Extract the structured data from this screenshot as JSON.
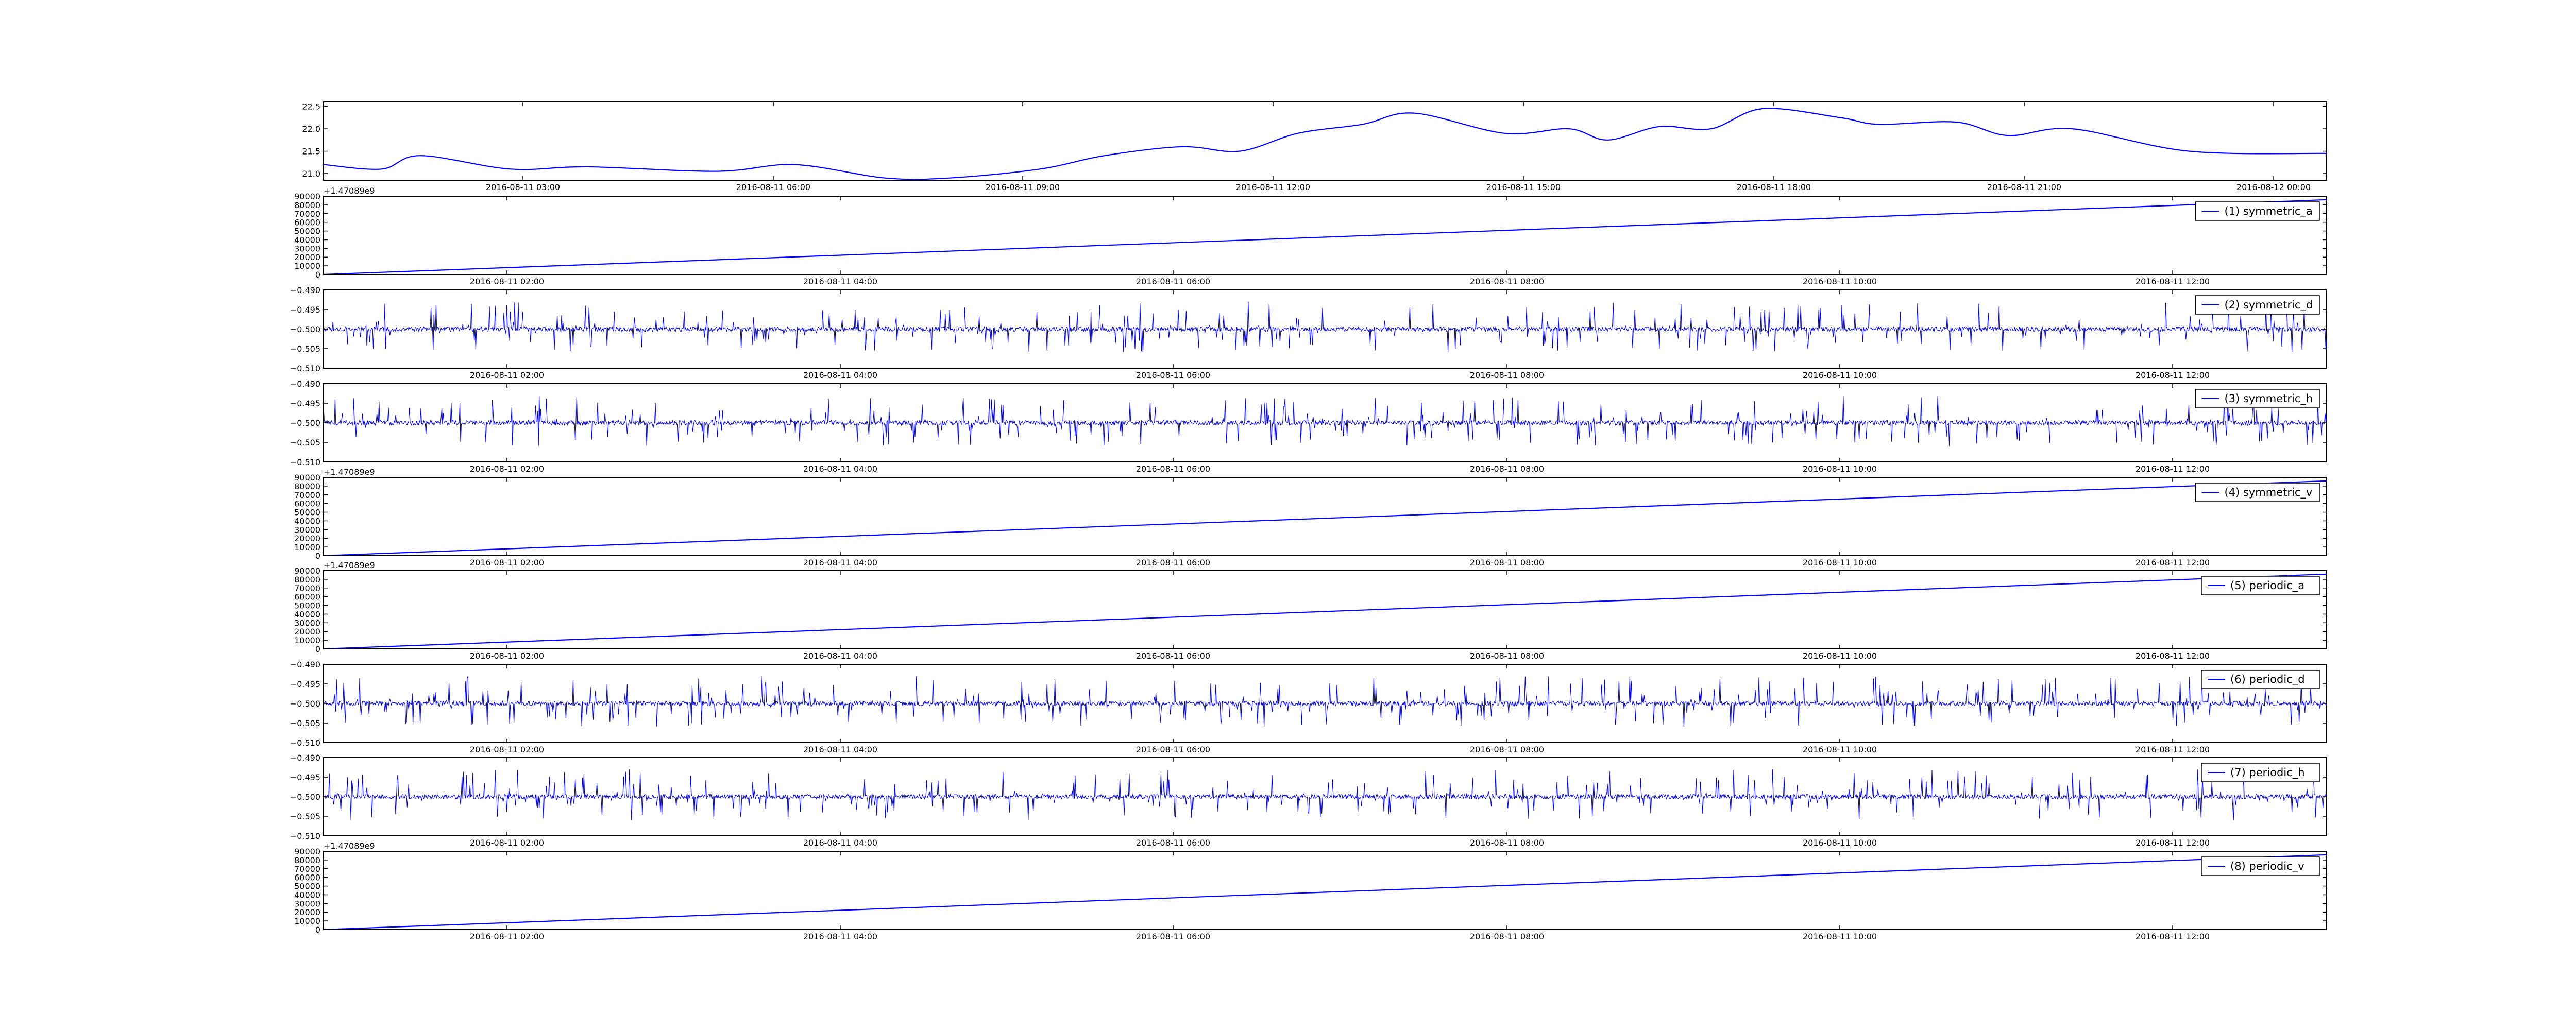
{
  "colors": {
    "line": "#0000ff",
    "axes": "#000000",
    "background": "#ffffff"
  },
  "chart_data": [
    {
      "type": "line",
      "panel": 0,
      "x_type": "datetime",
      "x_range": [
        "2016-08-11 00:55",
        "2016-08-12 02:47"
      ],
      "xtick_labels": [
        "2016-08-11 03:00",
        "2016-08-11 06:00",
        "2016-08-11 09:00",
        "2016-08-11 12:00",
        "2016-08-11 15:00",
        "2016-08-11 18:00",
        "2016-08-11 21:00",
        "2016-08-12 00:00"
      ],
      "ylim": [
        20.85,
        22.6
      ],
      "ytick_labels": [
        "21.0",
        "21.5",
        "22.0",
        "22.5"
      ],
      "y_offset_label": "",
      "legend": "",
      "series": [
        {
          "x": [
            "2016-08-11 00:55",
            "2016-08-11 01:40",
            "2016-08-11 02:10",
            "2016-08-11 03:20",
            "2016-08-11 04:20",
            "2016-08-11 06:00",
            "2016-08-11 07:00",
            "2016-08-11 08:10",
            "2016-08-11 09:00",
            "2016-08-11 10:10",
            "2016-08-11 11:00",
            "2016-08-11 12:00",
            "2016-08-11 12:45",
            "2016-08-11 13:30",
            "2016-08-11 14:20",
            "2016-08-11 15:00",
            "2016-08-11 16:10",
            "2016-08-11 17:00",
            "2016-08-11 17:30",
            "2016-08-11 18:10",
            "2016-08-11 18:50",
            "2016-08-11 19:30",
            "2016-08-11 20:30",
            "2016-08-11 21:00",
            "2016-08-11 22:00",
            "2016-08-11 22:40",
            "2016-08-11 23:30",
            "2016-08-12 01:00",
            "2016-08-12 02:47"
          ],
          "y": [
            21.2,
            21.1,
            21.4,
            21.1,
            21.15,
            21.05,
            21.2,
            20.9,
            20.9,
            21.1,
            21.4,
            21.6,
            21.5,
            21.9,
            22.1,
            22.35,
            21.9,
            22.0,
            21.75,
            22.05,
            22.0,
            22.45,
            22.25,
            22.1,
            22.15,
            21.85,
            22.0,
            21.5,
            21.45
          ]
        }
      ]
    },
    {
      "type": "line",
      "panel": 1,
      "x_type": "datetime",
      "x_range": [
        "2016-08-11 00:50",
        "2016-08-11 12:50"
      ],
      "xtick_labels": [
        "2016-08-11 02:00",
        "2016-08-11 04:00",
        "2016-08-11 06:00",
        "2016-08-11 08:00",
        "2016-08-11 10:00",
        "2016-08-11 12:00"
      ],
      "ylim": [
        0,
        90000
      ],
      "ytick_labels": [
        "0",
        "10000",
        "20000",
        "30000",
        "40000",
        "50000",
        "60000",
        "70000",
        "80000",
        "90000"
      ],
      "y_offset_label": "+1.47089e9",
      "legend": "(1) symmetric_a",
      "series": [
        {
          "x": [
            "2016-08-11 00:50",
            "2016-08-11 12:50"
          ],
          "y": [
            0,
            86000
          ]
        }
      ]
    },
    {
      "type": "line",
      "panel": 2,
      "x_type": "datetime",
      "x_range": [
        "2016-08-11 00:50",
        "2016-08-11 12:50"
      ],
      "xtick_labels": [
        "2016-08-11 02:00",
        "2016-08-11 04:00",
        "2016-08-11 06:00",
        "2016-08-11 08:00",
        "2016-08-11 10:00",
        "2016-08-11 12:00"
      ],
      "ylim": [
        -0.51,
        -0.49
      ],
      "ytick_labels": [
        "−0.490",
        "−0.495",
        "−0.500",
        "−0.505",
        "−0.510"
      ],
      "y_offset_label": "",
      "legend": "(2) symmetric_d",
      "signal": {
        "baseline": -0.5,
        "typical_range": [
          -0.506,
          -0.493
        ]
      }
    },
    {
      "type": "line",
      "panel": 3,
      "x_type": "datetime",
      "x_range": [
        "2016-08-11 00:50",
        "2016-08-11 12:50"
      ],
      "xtick_labels": [
        "2016-08-11 02:00",
        "2016-08-11 04:00",
        "2016-08-11 06:00",
        "2016-08-11 08:00",
        "2016-08-11 10:00",
        "2016-08-11 12:00"
      ],
      "ylim": [
        -0.51,
        -0.49
      ],
      "ytick_labels": [
        "−0.490",
        "−0.495",
        "−0.500",
        "−0.505",
        "−0.510"
      ],
      "y_offset_label": "",
      "legend": "(3) symmetric_h",
      "signal": {
        "baseline": -0.5,
        "typical_range": [
          -0.506,
          -0.493
        ]
      }
    },
    {
      "type": "line",
      "panel": 4,
      "x_type": "datetime",
      "x_range": [
        "2016-08-11 00:50",
        "2016-08-11 12:50"
      ],
      "xtick_labels": [
        "2016-08-11 02:00",
        "2016-08-11 04:00",
        "2016-08-11 06:00",
        "2016-08-11 08:00",
        "2016-08-11 10:00",
        "2016-08-11 12:00"
      ],
      "ylim": [
        0,
        90000
      ],
      "ytick_labels": [
        "0",
        "10000",
        "20000",
        "30000",
        "40000",
        "50000",
        "60000",
        "70000",
        "80000",
        "90000"
      ],
      "y_offset_label": "+1.47089e9",
      "legend": "(4) symmetric_v",
      "series": [
        {
          "x": [
            "2016-08-11 00:50",
            "2016-08-11 12:50"
          ],
          "y": [
            0,
            86000
          ]
        }
      ]
    },
    {
      "type": "line",
      "panel": 5,
      "x_type": "datetime",
      "x_range": [
        "2016-08-11 00:50",
        "2016-08-11 12:50"
      ],
      "xtick_labels": [
        "2016-08-11 02:00",
        "2016-08-11 04:00",
        "2016-08-11 06:00",
        "2016-08-11 08:00",
        "2016-08-11 10:00",
        "2016-08-11 12:00"
      ],
      "ylim": [
        0,
        90000
      ],
      "ytick_labels": [
        "0",
        "10000",
        "20000",
        "30000",
        "40000",
        "50000",
        "60000",
        "70000",
        "80000",
        "90000"
      ],
      "y_offset_label": "+1.47089e9",
      "legend": "(5) periodic_a",
      "series": [
        {
          "x": [
            "2016-08-11 00:50",
            "2016-08-11 12:50"
          ],
          "y": [
            0,
            86000
          ]
        }
      ]
    },
    {
      "type": "line",
      "panel": 6,
      "x_type": "datetime",
      "x_range": [
        "2016-08-11 00:50",
        "2016-08-11 12:50"
      ],
      "xtick_labels": [
        "2016-08-11 02:00",
        "2016-08-11 04:00",
        "2016-08-11 06:00",
        "2016-08-11 08:00",
        "2016-08-11 10:00",
        "2016-08-11 12:00"
      ],
      "ylim": [
        -0.51,
        -0.49
      ],
      "ytick_labels": [
        "−0.490",
        "−0.495",
        "−0.500",
        "−0.505",
        "−0.510"
      ],
      "y_offset_label": "",
      "legend": "(6) periodic_d",
      "signal": {
        "baseline": -0.5,
        "typical_range": [
          -0.506,
          -0.493
        ]
      }
    },
    {
      "type": "line",
      "panel": 7,
      "x_type": "datetime",
      "x_range": [
        "2016-08-11 00:50",
        "2016-08-11 12:50"
      ],
      "xtick_labels": [
        "2016-08-11 02:00",
        "2016-08-11 04:00",
        "2016-08-11 06:00",
        "2016-08-11 08:00",
        "2016-08-11 10:00",
        "2016-08-11 12:00"
      ],
      "ylim": [
        -0.51,
        -0.49
      ],
      "ytick_labels": [
        "−0.490",
        "−0.495",
        "−0.500",
        "−0.505",
        "−0.510"
      ],
      "y_offset_label": "",
      "legend": "(7) periodic_h",
      "signal": {
        "baseline": -0.5,
        "typical_range": [
          -0.506,
          -0.493
        ]
      }
    },
    {
      "type": "line",
      "panel": 8,
      "x_type": "datetime",
      "x_range": [
        "2016-08-11 00:50",
        "2016-08-11 12:50"
      ],
      "xtick_labels": [
        "2016-08-11 02:00",
        "2016-08-11 04:00",
        "2016-08-11 06:00",
        "2016-08-11 08:00",
        "2016-08-11 10:00",
        "2016-08-11 12:00"
      ],
      "ylim": [
        0,
        90000
      ],
      "ytick_labels": [
        "0",
        "10000",
        "20000",
        "30000",
        "40000",
        "50000",
        "60000",
        "70000",
        "80000",
        "90000"
      ],
      "y_offset_label": "+1.47089e9",
      "legend": "(8) periodic_v",
      "series": [
        {
          "x": [
            "2016-08-11 00:50",
            "2016-08-11 12:50"
          ],
          "y": [
            0,
            86000
          ]
        }
      ]
    }
  ]
}
